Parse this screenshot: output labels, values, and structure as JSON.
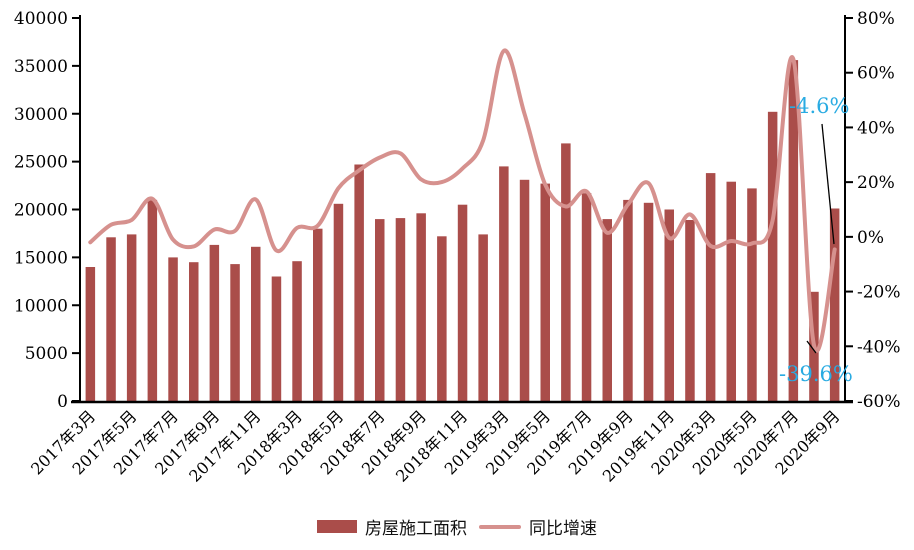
{
  "chart_data": {
    "type": "bar+line",
    "title": "",
    "categories": [
      "2017年3月",
      "2017年4月",
      "2017年5月",
      "2017年6月",
      "2017年7月",
      "2017年8月",
      "2017年9月",
      "2017年10月",
      "2017年11月",
      "2017年12月",
      "2018年3月",
      "2018年4月",
      "2018年5月",
      "2018年6月",
      "2018年7月",
      "2018年8月",
      "2018年9月",
      "2018年10月",
      "2018年11月",
      "2018年12月",
      "2019年3月",
      "2019年4月",
      "2019年5月",
      "2019年6月",
      "2019年7月",
      "2019年8月",
      "2019年9月",
      "2019年10月",
      "2019年11月",
      "2019年12月",
      "2020年3月",
      "2020年4月",
      "2020年5月",
      "2020年6月",
      "2020年7月",
      "2020年8月",
      "2020年9月"
    ],
    "x_tick_labels_shown": [
      "2017年3月",
      "2017年5月",
      "2017年7月",
      "2017年9月",
      "2017年11月",
      "2018年3月",
      "2018年5月",
      "2018年7月",
      "2018年9月",
      "2018年11月",
      "2019年3月",
      "2019年5月",
      "2019年7月",
      "2019年9月",
      "2019年11月",
      "2020年3月",
      "2020年5月",
      "2020年7月",
      "2020年9月"
    ],
    "series": [
      {
        "name": "房屋施工面积",
        "type": "bar",
        "axis": "left",
        "color": "#aa4d4a",
        "values": [
          14000,
          17100,
          17400,
          21000,
          15000,
          14500,
          16300,
          14300,
          16100,
          13000,
          14600,
          18000,
          20600,
          24700,
          19000,
          19100,
          19600,
          17200,
          20500,
          17400,
          24500,
          23100,
          22700,
          26900,
          21700,
          19000,
          21000,
          20700,
          20000,
          18900,
          23800,
          22900,
          22200,
          30200,
          35600,
          11400,
          20100
        ]
      },
      {
        "name": "同比增速",
        "type": "line",
        "axis": "right",
        "color": "#d6918e",
        "values": [
          -2.0,
          4.4,
          6.2,
          13.9,
          -1.0,
          -3.5,
          2.7,
          2.2,
          13.7,
          -5.0,
          3.3,
          4.1,
          17.8,
          24.3,
          29.0,
          30.5,
          21.0,
          20.0,
          25.0,
          35.3,
          68.0,
          45.0,
          19.1,
          11.1,
          16.6,
          1.5,
          11.8,
          19.6,
          -0.4,
          8.2,
          -3.3,
          -1.5,
          -2.4,
          6.0,
          65.0,
          -39.6,
          -4.6
        ]
      }
    ],
    "left_axis": {
      "min": 0,
      "max": 40000,
      "step": 5000,
      "tick_labels": [
        "40000",
        "35000",
        "30000",
        "25000",
        "20000",
        "15000",
        "10000",
        "5000",
        "0"
      ]
    },
    "right_axis": {
      "min": -60,
      "max": 80,
      "step": 20,
      "tick_labels": [
        "80%",
        "60%",
        "40%",
        "20%",
        "0%",
        "-20%",
        "-40%",
        "-60%"
      ]
    },
    "annotations": [
      {
        "text": "-4.6%",
        "color": "#29abe2",
        "series": "同比增速",
        "category": "2020年9月",
        "value": -4.6
      },
      {
        "text": "-39.6%",
        "color": "#29abe2",
        "series": "同比增速",
        "category": "2020年8月",
        "value": -39.6
      }
    ],
    "legend": {
      "position": "bottom",
      "entries": [
        "房屋施工面积",
        "同比增速"
      ]
    },
    "grid": false,
    "background": "#ffffff",
    "axis_color": "#000000"
  }
}
